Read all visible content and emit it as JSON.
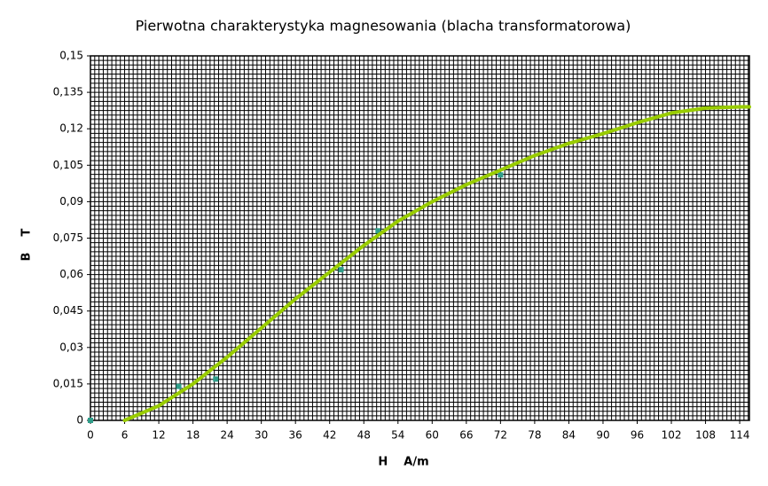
{
  "chart_data": {
    "type": "line",
    "title": "Pierwotna charakterystyka magnesowania (blacha transformatorowa)",
    "x_label": "H    A/m",
    "y_label": "B    T",
    "xlim": [
      0,
      115.7
    ],
    "ylim": [
      0,
      0.15
    ],
    "xticks": [
      0,
      6,
      12,
      18,
      24,
      30,
      36,
      42,
      48,
      54,
      60,
      66,
      72,
      78,
      84,
      90,
      96,
      102,
      108,
      114
    ],
    "yticks": [
      0,
      {
        "value": 0.015,
        "label": "0,015"
      },
      {
        "value": 0.03,
        "label": "0,03"
      },
      {
        "value": 0.045,
        "label": "0,045"
      },
      {
        "value": 0.06,
        "label": "0,06"
      },
      {
        "value": 0.075,
        "label": "0,075"
      },
      {
        "value": 0.09,
        "label": "0,09"
      },
      {
        "value": 0.105,
        "label": "0,105"
      },
      {
        "value": 0.12,
        "label": "0,12"
      },
      {
        "value": 0.135,
        "label": "0,135"
      },
      {
        "value": 0.15,
        "label": "0,15"
      }
    ],
    "grid": true,
    "minor_divisions": 8,
    "series": [
      {
        "kind": "markers",
        "color": "#2f9e8a",
        "x": [
          0,
          15.5,
          22,
          44,
          50.5,
          72
        ],
        "values": [
          0,
          0.014,
          0.017,
          0.062,
          0.078,
          0.101
        ]
      },
      {
        "kind": "line",
        "color": "#99cc00",
        "x": [
          6,
          12,
          18,
          24,
          30,
          36,
          42,
          48,
          54,
          60,
          66,
          72,
          78,
          84,
          90,
          96,
          102,
          108,
          114,
          115.7
        ],
        "values": [
          0,
          0.006,
          0.015,
          0.026,
          0.038,
          0.05,
          0.061,
          0.072,
          0.082,
          0.09,
          0.097,
          0.103,
          0.109,
          0.114,
          0.118,
          0.1225,
          0.1265,
          0.1285,
          0.129,
          0.129
        ]
      }
    ]
  }
}
